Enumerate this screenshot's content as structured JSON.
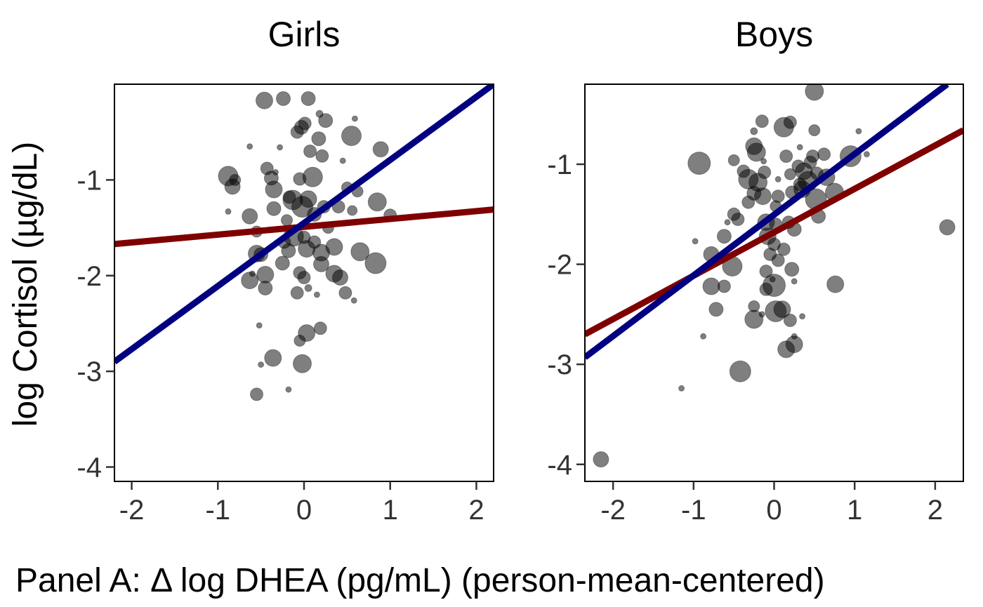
{
  "chart_data": {
    "type": "scatter",
    "ylabel": "log Cortisol (µg/dL)",
    "xlabel": "Panel A: Δ log DHEA (pg/mL) (person-mean-centered)",
    "colors": {
      "point": "#000000",
      "line_red": "#7f0000",
      "line_blue": "#000080"
    },
    "panels": [
      {
        "title": "Girls",
        "xlim": [
          -2.2,
          2.2
        ],
        "ylim": [
          -4.15,
          0.0
        ],
        "xticks": [
          -2,
          -1,
          0,
          1,
          2
        ],
        "xtick_labels": [
          "-2",
          "-1",
          "0",
          "1",
          "2"
        ],
        "yticks": [
          -1,
          -2,
          -3,
          -4
        ],
        "ytick_labels": [
          "-1",
          "-2",
          "-3",
          "-4"
        ],
        "lines": [
          {
            "color": "red",
            "x": [
              -2.2,
              2.2
            ],
            "y": [
              -1.67,
              -1.31
            ]
          },
          {
            "color": "blue",
            "x": [
              -2.2,
              2.2
            ],
            "y": [
              -2.9,
              0.0
            ]
          }
        ],
        "points": [
          {
            "x": -0.46,
            "y": -0.17,
            "s": 12
          },
          {
            "x": -0.24,
            "y": -0.15,
            "s": 10
          },
          {
            "x": 0.05,
            "y": -0.15,
            "s": 10
          },
          {
            "x": -0.03,
            "y": -0.45,
            "s": 10
          },
          {
            "x": 0.01,
            "y": -0.41,
            "s": 9
          },
          {
            "x": 0.25,
            "y": -0.38,
            "s": 10
          },
          {
            "x": 0.18,
            "y": -0.31,
            "s": 5
          },
          {
            "x": 0.59,
            "y": -0.36,
            "s": 4
          },
          {
            "x": -0.08,
            "y": -0.5,
            "s": 9
          },
          {
            "x": 0.17,
            "y": -0.57,
            "s": 10
          },
          {
            "x": 0.55,
            "y": -0.54,
            "s": 14
          },
          {
            "x": -0.63,
            "y": -0.65,
            "s": 4
          },
          {
            "x": -0.28,
            "y": -0.66,
            "s": 4
          },
          {
            "x": 0.07,
            "y": -0.7,
            "s": 9
          },
          {
            "x": 0.21,
            "y": -0.75,
            "s": 9
          },
          {
            "x": 0.45,
            "y": -0.8,
            "s": 4
          },
          {
            "x": 0.89,
            "y": -0.68,
            "s": 11
          },
          {
            "x": -0.43,
            "y": -0.88,
            "s": 9
          },
          {
            "x": -0.88,
            "y": -0.96,
            "s": 14
          },
          {
            "x": -0.83,
            "y": -1.07,
            "s": 11
          },
          {
            "x": -0.38,
            "y": -0.98,
            "s": 10
          },
          {
            "x": -0.33,
            "y": -0.92,
            "s": 4
          },
          {
            "x": -0.35,
            "y": -1.1,
            "s": 12
          },
          {
            "x": -0.63,
            "y": -1.38,
            "s": 11
          },
          {
            "x": -0.35,
            "y": -1.3,
            "s": 10
          },
          {
            "x": -0.17,
            "y": -1.18,
            "s": 9
          },
          {
            "x": -0.13,
            "y": -1.21,
            "s": 14
          },
          {
            "x": -0.05,
            "y": -0.99,
            "s": 9
          },
          {
            "x": 0.1,
            "y": -0.97,
            "s": 14
          },
          {
            "x": 0.05,
            "y": -1.2,
            "s": 12
          },
          {
            "x": -0.02,
            "y": -1.28,
            "s": 15
          },
          {
            "x": -0.2,
            "y": -1.42,
            "s": 8
          },
          {
            "x": 0.12,
            "y": -1.36,
            "s": 10
          },
          {
            "x": 0.23,
            "y": -1.28,
            "s": 9
          },
          {
            "x": 0.4,
            "y": -1.28,
            "s": 9
          },
          {
            "x": 0.5,
            "y": -1.08,
            "s": 8
          },
          {
            "x": 0.62,
            "y": -1.12,
            "s": 8
          },
          {
            "x": 0.56,
            "y": -1.32,
            "s": 7
          },
          {
            "x": 0.85,
            "y": -1.23,
            "s": 13
          },
          {
            "x": -0.88,
            "y": -1.33,
            "s": 4
          },
          {
            "x": -0.55,
            "y": -1.54,
            "s": 8
          },
          {
            "x": -0.5,
            "y": -1.78,
            "s": 10
          },
          {
            "x": -0.55,
            "y": -1.77,
            "s": 12
          },
          {
            "x": -0.23,
            "y": -1.65,
            "s": 9
          },
          {
            "x": -0.18,
            "y": -1.74,
            "s": 10
          },
          {
            "x": -0.12,
            "y": -1.59,
            "s": 14
          },
          {
            "x": 0.0,
            "y": -1.6,
            "s": 9
          },
          {
            "x": 0.03,
            "y": -1.72,
            "s": 12
          },
          {
            "x": 0.12,
            "y": -1.65,
            "s": 9
          },
          {
            "x": 0.2,
            "y": -1.76,
            "s": 12
          },
          {
            "x": 0.35,
            "y": -1.7,
            "s": 12
          },
          {
            "x": 0.2,
            "y": -1.88,
            "s": 11
          },
          {
            "x": 0.35,
            "y": -1.98,
            "s": 12
          },
          {
            "x": 0.65,
            "y": -1.75,
            "s": 13
          },
          {
            "x": 0.83,
            "y": -1.87,
            "s": 15
          },
          {
            "x": -0.63,
            "y": -2.05,
            "s": 12
          },
          {
            "x": -0.45,
            "y": -1.99,
            "s": 12
          },
          {
            "x": -0.45,
            "y": -2.13,
            "s": 10
          },
          {
            "x": -0.6,
            "y": -1.98,
            "s": 4
          },
          {
            "x": -0.25,
            "y": -1.87,
            "s": 10
          },
          {
            "x": -0.05,
            "y": -1.97,
            "s": 9
          },
          {
            "x": 0.0,
            "y": -2.02,
            "s": 9
          },
          {
            "x": 0.05,
            "y": -2.13,
            "s": 5
          },
          {
            "x": 0.15,
            "y": -2.2,
            "s": 4
          },
          {
            "x": -0.08,
            "y": -2.18,
            "s": 9
          },
          {
            "x": 0.42,
            "y": -2.02,
            "s": 11
          },
          {
            "x": 0.48,
            "y": -2.18,
            "s": 9
          },
          {
            "x": 0.58,
            "y": -2.26,
            "s": 4
          },
          {
            "x": -0.52,
            "y": -2.52,
            "s": 4
          },
          {
            "x": 0.03,
            "y": -2.6,
            "s": 12
          },
          {
            "x": 0.19,
            "y": -2.55,
            "s": 9
          },
          {
            "x": -0.05,
            "y": -2.68,
            "s": 8
          },
          {
            "x": -0.36,
            "y": -2.86,
            "s": 12
          },
          {
            "x": -0.5,
            "y": -2.93,
            "s": 4
          },
          {
            "x": -0.02,
            "y": -2.92,
            "s": 13
          },
          {
            "x": -0.55,
            "y": -3.24,
            "s": 9
          },
          {
            "x": -0.18,
            "y": -3.19,
            "s": 4
          },
          {
            "x": 1.0,
            "y": -1.37,
            "s": 9
          },
          {
            "x": -0.8,
            "y": -1.0,
            "s": 8
          },
          {
            "x": 0.28,
            "y": -1.5,
            "s": 8
          }
        ]
      },
      {
        "title": "Boys",
        "xlim": [
          -2.35,
          2.35
        ],
        "ylim": [
          -4.17,
          -0.2
        ],
        "xticks": [
          -2,
          -1,
          0,
          1,
          2
        ],
        "xtick_labels": [
          "-2",
          "-1",
          "0",
          "1",
          "2"
        ],
        "yticks": [
          -1,
          -2,
          -3,
          -4
        ],
        "ytick_labels": [
          "-1",
          "-2",
          "-3",
          "-4"
        ],
        "lines": [
          {
            "color": "red",
            "x": [
              -2.35,
              2.35
            ],
            "y": [
              -2.7,
              -0.66
            ]
          },
          {
            "color": "blue",
            "x": [
              -2.35,
              2.15
            ],
            "y": [
              -2.93,
              -0.2
            ]
          }
        ],
        "points": [
          {
            "x": 0.5,
            "y": -0.27,
            "s": 13
          },
          {
            "x": -0.15,
            "y": -0.57,
            "s": 9
          },
          {
            "x": -0.25,
            "y": -0.67,
            "s": 5
          },
          {
            "x": 0.12,
            "y": -0.63,
            "s": 14
          },
          {
            "x": 0.2,
            "y": -0.58,
            "s": 9
          },
          {
            "x": 0.5,
            "y": -0.66,
            "s": 8
          },
          {
            "x": 1.05,
            "y": -0.67,
            "s": 4
          },
          {
            "x": -0.25,
            "y": -0.82,
            "s": 12
          },
          {
            "x": -0.22,
            "y": -0.88,
            "s": 13
          },
          {
            "x": 0.32,
            "y": -0.83,
            "s": 4
          },
          {
            "x": 0.15,
            "y": -0.92,
            "s": 9
          },
          {
            "x": 0.48,
            "y": -0.92,
            "s": 9
          },
          {
            "x": 0.62,
            "y": -0.9,
            "s": 9
          },
          {
            "x": 0.95,
            "y": -0.92,
            "s": 15
          },
          {
            "x": 1.15,
            "y": -0.9,
            "s": 4
          },
          {
            "x": -0.93,
            "y": -0.99,
            "s": 16
          },
          {
            "x": -0.5,
            "y": -0.96,
            "s": 8
          },
          {
            "x": -0.13,
            "y": -0.97,
            "s": 4
          },
          {
            "x": -0.38,
            "y": -1.07,
            "s": 9
          },
          {
            "x": -0.32,
            "y": -1.15,
            "s": 14
          },
          {
            "x": -0.2,
            "y": -1.18,
            "s": 13
          },
          {
            "x": -0.12,
            "y": -1.08,
            "s": 9
          },
          {
            "x": 0.05,
            "y": -1.15,
            "s": 4
          },
          {
            "x": 0.2,
            "y": -1.1,
            "s": 8
          },
          {
            "x": 0.3,
            "y": -1.02,
            "s": 9
          },
          {
            "x": 0.37,
            "y": -1.07,
            "s": 12
          },
          {
            "x": 0.42,
            "y": -1.17,
            "s": 14
          },
          {
            "x": 0.45,
            "y": -0.98,
            "s": 9
          },
          {
            "x": 0.53,
            "y": -1.09,
            "s": 9
          },
          {
            "x": 0.65,
            "y": -1.13,
            "s": 12
          },
          {
            "x": -0.25,
            "y": -1.29,
            "s": 10
          },
          {
            "x": -0.14,
            "y": -1.32,
            "s": 12
          },
          {
            "x": 0.05,
            "y": -1.32,
            "s": 9
          },
          {
            "x": 0.22,
            "y": -1.28,
            "s": 9
          },
          {
            "x": 0.35,
            "y": -1.25,
            "s": 12
          },
          {
            "x": 0.52,
            "y": -1.35,
            "s": 15
          },
          {
            "x": 0.75,
            "y": -1.28,
            "s": 13
          },
          {
            "x": -0.32,
            "y": -1.38,
            "s": 9
          },
          {
            "x": 0.02,
            "y": -1.42,
            "s": 8
          },
          {
            "x": -0.5,
            "y": -1.5,
            "s": 9
          },
          {
            "x": -0.45,
            "y": -1.55,
            "s": 9
          },
          {
            "x": -0.58,
            "y": -1.58,
            "s": 4
          },
          {
            "x": -0.1,
            "y": -1.58,
            "s": 12
          },
          {
            "x": 0.02,
            "y": -1.6,
            "s": 9
          },
          {
            "x": 0.18,
            "y": -1.58,
            "s": 9
          },
          {
            "x": 0.25,
            "y": -1.65,
            "s": 10
          },
          {
            "x": 0.55,
            "y": -1.52,
            "s": 10
          },
          {
            "x": -0.62,
            "y": -1.72,
            "s": 10
          },
          {
            "x": -0.08,
            "y": -1.72,
            "s": 12
          },
          {
            "x": 0.0,
            "y": -1.8,
            "s": 9
          },
          {
            "x": 0.12,
            "y": -1.85,
            "s": 9
          },
          {
            "x": -0.98,
            "y": -1.77,
            "s": 4
          },
          {
            "x": -0.78,
            "y": -1.9,
            "s": 11
          },
          {
            "x": -0.52,
            "y": -2.02,
            "s": 14
          },
          {
            "x": -0.05,
            "y": -1.9,
            "s": 9
          },
          {
            "x": 0.05,
            "y": -1.96,
            "s": 9
          },
          {
            "x": 0.22,
            "y": -2.05,
            "s": 10
          },
          {
            "x": -0.1,
            "y": -2.07,
            "s": 9
          },
          {
            "x": -0.02,
            "y": -2.15,
            "s": 4
          },
          {
            "x": 0.25,
            "y": -2.17,
            "s": 4
          },
          {
            "x": -0.78,
            "y": -2.22,
            "s": 12
          },
          {
            "x": -0.62,
            "y": -2.22,
            "s": 9
          },
          {
            "x": -0.1,
            "y": -2.25,
            "s": 9
          },
          {
            "x": 0.0,
            "y": -2.21,
            "s": 16
          },
          {
            "x": 0.76,
            "y": -2.2,
            "s": 12
          },
          {
            "x": -0.72,
            "y": -2.45,
            "s": 10
          },
          {
            "x": -0.25,
            "y": -2.42,
            "s": 8
          },
          {
            "x": -0.15,
            "y": -2.5,
            "s": 4
          },
          {
            "x": 0.02,
            "y": -2.47,
            "s": 15
          },
          {
            "x": 0.1,
            "y": -2.45,
            "s": 12
          },
          {
            "x": 0.2,
            "y": -2.56,
            "s": 9
          },
          {
            "x": -0.25,
            "y": -2.55,
            "s": 13
          },
          {
            "x": 0.35,
            "y": -2.52,
            "s": 4
          },
          {
            "x": -0.88,
            "y": -2.72,
            "s": 4
          },
          {
            "x": 0.15,
            "y": -2.85,
            "s": 12
          },
          {
            "x": 0.25,
            "y": -2.8,
            "s": 12
          },
          {
            "x": 0.25,
            "y": -2.72,
            "s": 4
          },
          {
            "x": -0.42,
            "y": -3.07,
            "s": 15
          },
          {
            "x": -1.15,
            "y": -3.24,
            "s": 4
          },
          {
            "x": 2.15,
            "y": -1.63,
            "s": 11
          },
          {
            "x": -2.15,
            "y": -3.95,
            "s": 11
          },
          {
            "x": 0.32,
            "y": -1.2,
            "s": 9
          }
        ]
      }
    ]
  }
}
